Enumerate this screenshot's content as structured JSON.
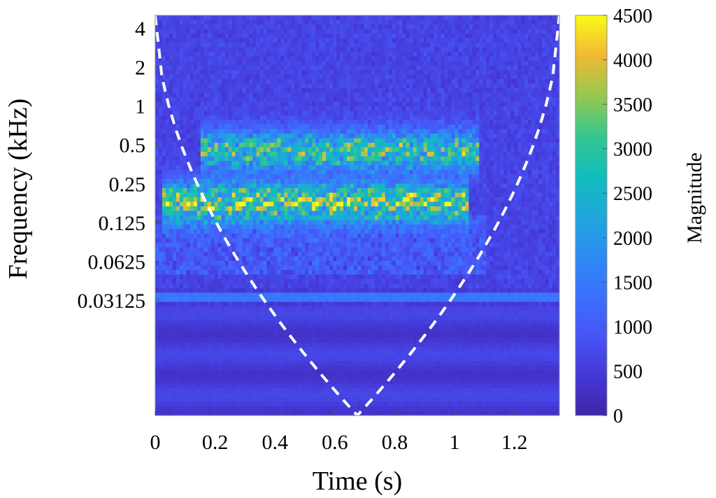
{
  "chart_data": {
    "type": "heatmap",
    "title": "",
    "xlabel": "Time (s)",
    "ylabel": "Frequency (kHz)",
    "xlim": [
      0,
      1.35
    ],
    "y_scale": "log2",
    "ylim_khz": [
      0.004,
      5
    ],
    "x_ticks": [
      {
        "value": 0,
        "label": "0"
      },
      {
        "value": 0.2,
        "label": "0.2"
      },
      {
        "value": 0.4,
        "label": "0.4"
      },
      {
        "value": 0.6,
        "label": "0.6"
      },
      {
        "value": 0.8,
        "label": "0.8"
      },
      {
        "value": 1.0,
        "label": "1"
      },
      {
        "value": 1.2,
        "label": "1.2"
      }
    ],
    "y_ticks": [
      {
        "value": 4,
        "label": "4"
      },
      {
        "value": 2,
        "label": "2"
      },
      {
        "value": 1,
        "label": "1"
      },
      {
        "value": 0.5,
        "label": "0.5"
      },
      {
        "value": 0.25,
        "label": "0.25"
      },
      {
        "value": 0.125,
        "label": "0.125"
      },
      {
        "value": 0.0625,
        "label": "0.0625"
      },
      {
        "value": 0.03125,
        "label": "0.03125"
      }
    ],
    "colorbar": {
      "label": "Magnitude",
      "range": [
        0,
        4500
      ],
      "colormap": "parula",
      "ticks": [
        0,
        500,
        1000,
        1500,
        2000,
        2500,
        3000,
        3500,
        4000,
        4500
      ]
    },
    "cone_of_influence": {
      "style": "dashed",
      "color": "#ffffff"
    },
    "features": [
      {
        "t_range": [
          0.02,
          1.05
        ],
        "f_khz": 0.18,
        "description_level": "high",
        "max_magnitude": 4500
      },
      {
        "t_range": [
          0.15,
          1.08
        ],
        "f_khz": 0.45,
        "description_level": "medium-high",
        "max_magnitude": 3800
      }
    ]
  }
}
